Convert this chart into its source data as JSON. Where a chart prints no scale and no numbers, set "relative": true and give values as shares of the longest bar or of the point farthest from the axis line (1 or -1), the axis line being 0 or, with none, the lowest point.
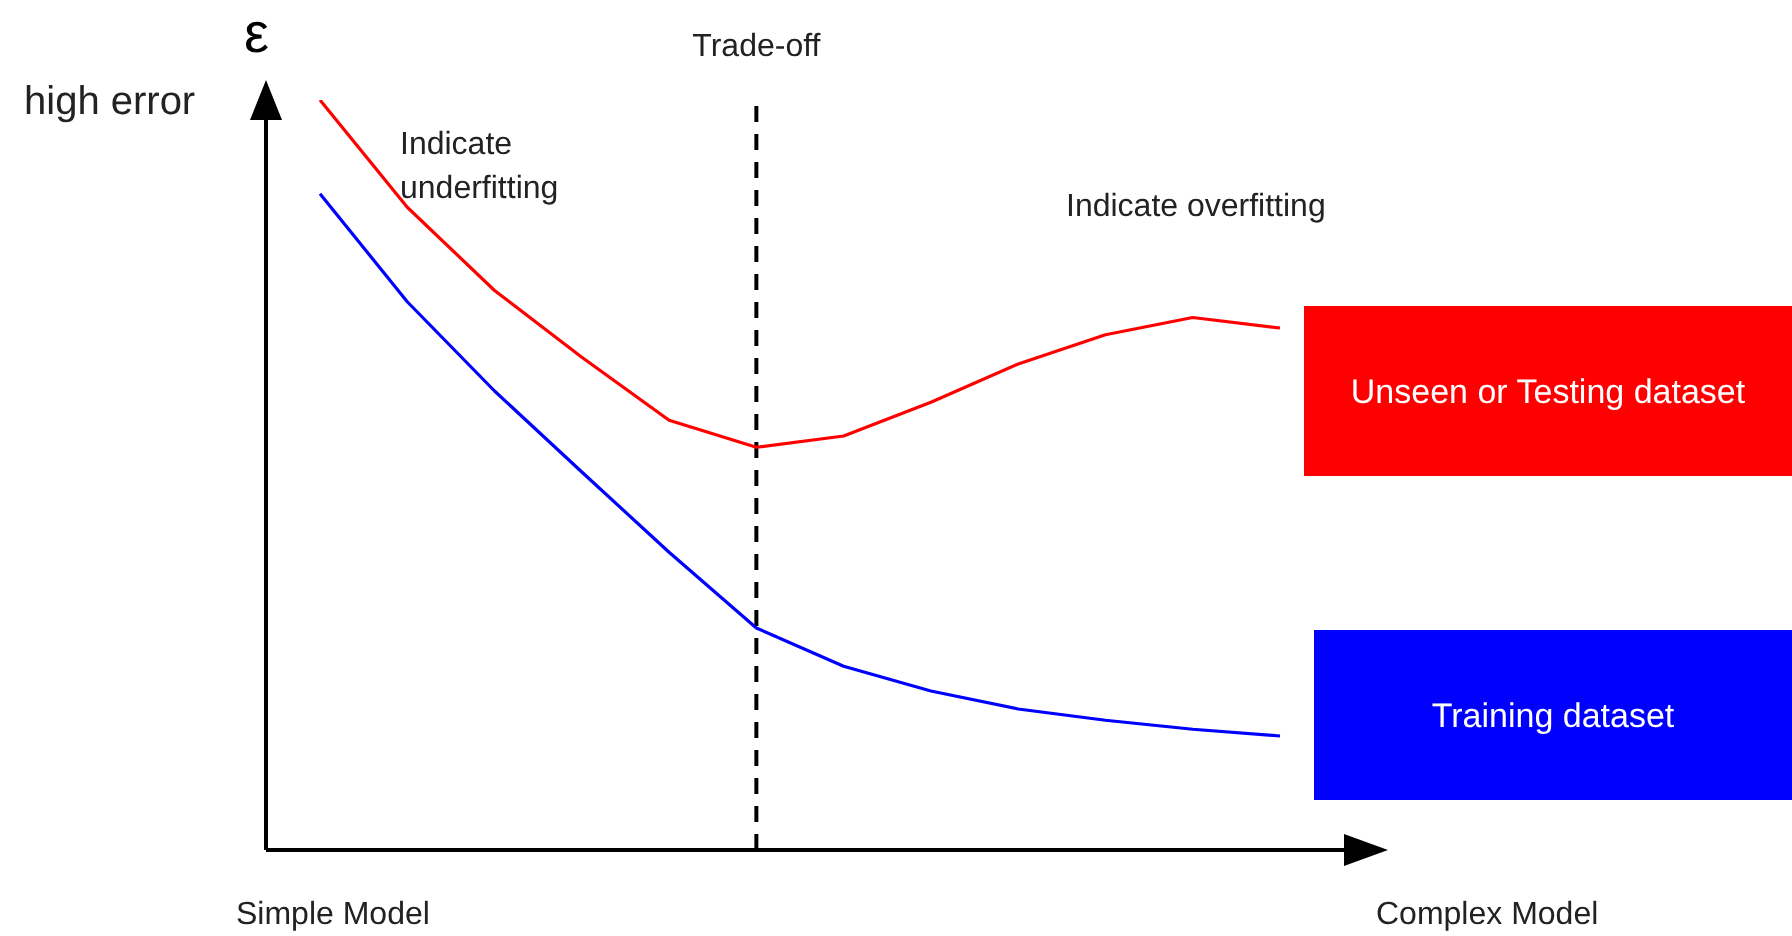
{
  "chart_data": {
    "type": "line",
    "relative": true,
    "ylabel": "ε",
    "categories": [
      null,
      null,
      null,
      null,
      null,
      null,
      null,
      null,
      null,
      null,
      null,
      null
    ],
    "legend": "right",
    "grid": false,
    "marker": "none",
    "series": [
      {
        "name": "Unseen or Testing dataset",
        "color": "#ff0000",
        "values": [
          1.0,
          0.857,
          0.746,
          0.657,
          0.573,
          0.537,
          0.552,
          0.597,
          0.648,
          0.687,
          0.71,
          0.696
        ]
      },
      {
        "name": "Training dataset",
        "color": "#0000ff",
        "values": [
          0.875,
          0.731,
          0.612,
          0.504,
          0.397,
          0.296,
          0.245,
          0.212,
          0.188,
          0.173,
          0.161,
          0.152
        ]
      }
    ],
    "ref_lines": [
      {
        "axis": "x",
        "label": "Trade-off",
        "line_style": "dashed",
        "color": "#000000"
      }
    ],
    "annotations": [
      "high error",
      "Indicate underfitting",
      "Indicate overfitting",
      "Simple Model",
      "Complex Model"
    ]
  }
}
